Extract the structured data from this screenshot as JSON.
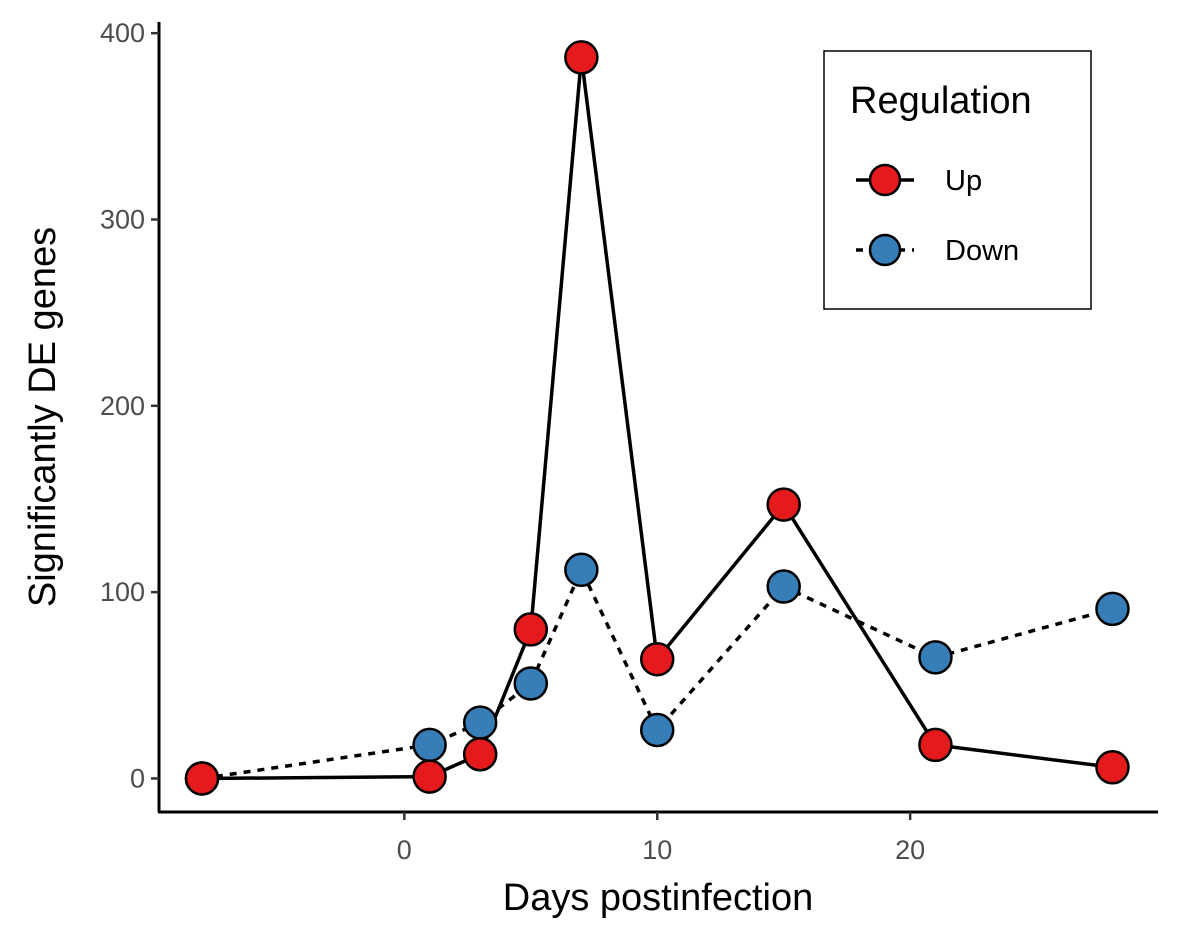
{
  "chart_data": {
    "type": "line",
    "title": "",
    "xlabel": "Days postinfection",
    "ylabel": "Significantly DE genes",
    "xlim": [
      -9.7,
      29.8
    ],
    "ylim": [
      -18,
      406
    ],
    "x_ticks": [
      0,
      10,
      20
    ],
    "y_ticks": [
      0,
      100,
      200,
      300,
      400
    ],
    "grid": false,
    "legend": {
      "title": "Regulation",
      "position": "top-right"
    },
    "series": [
      {
        "name": "Up",
        "color": "#E41A1C",
        "line_style": "solid",
        "x": [
          -8,
          1,
          3,
          5,
          7,
          10,
          15,
          21,
          28
        ],
        "y": [
          0,
          1,
          13,
          80,
          387,
          64,
          147,
          18,
          6
        ]
      },
      {
        "name": "Down",
        "color": "#377EB8",
        "line_style": "dashed",
        "x": [
          -8,
          1,
          3,
          5,
          7,
          10,
          15,
          21,
          28
        ],
        "y": [
          0,
          18,
          30,
          51,
          112,
          26,
          103,
          65,
          91
        ]
      }
    ]
  }
}
